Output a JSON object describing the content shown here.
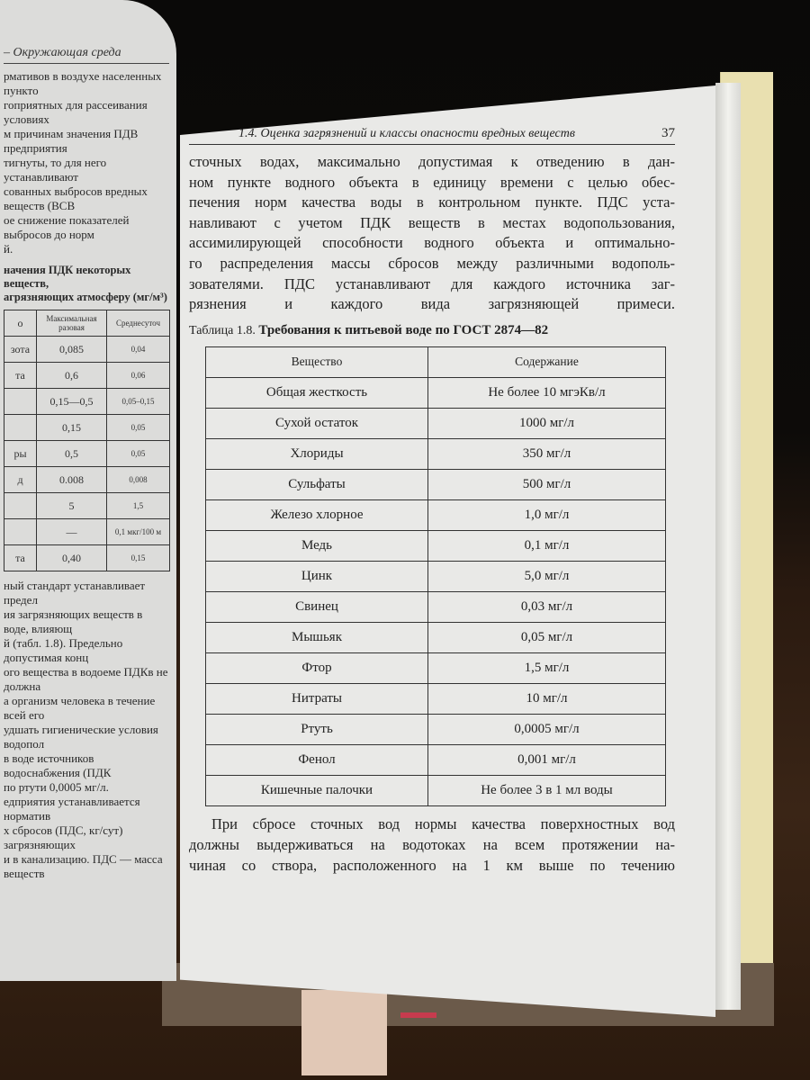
{
  "left_page": {
    "running_header": "– Окружающая среда",
    "paragraph_top": [
      "рмативов в воздухе населенных пункто",
      "гоприятных для рассеивания условиях",
      "м причинам значения ПДВ предприятия",
      "тигнуты, то для него устанавливают",
      "сованных выбросов вредных веществ (ВСВ",
      "ое снижение показателей выбросов до норм",
      "й."
    ],
    "table_caption": [
      "начения ПДК некоторых веществ,",
      "агрязняющих атмосферу (мг/м³)"
    ],
    "table_header": [
      "о",
      "Максимальная разовая",
      "Среднесуточ"
    ],
    "table_rows": [
      [
        "зота",
        "0,085",
        "0,04"
      ],
      [
        "та",
        "0,6",
        "0,06"
      ],
      [
        "",
        "0,15—0,5",
        "0,05–0,15"
      ],
      [
        "",
        "0,15",
        "0,05"
      ],
      [
        "ры",
        "0,5",
        "0,05"
      ],
      [
        "д",
        "0.008",
        "0,008"
      ],
      [
        "",
        "5",
        "1,5"
      ],
      [
        "",
        "—",
        "0,1 мкг/100 м"
      ],
      [
        "та",
        "0,40",
        "0,15"
      ]
    ],
    "paragraph_bottom": [
      "ный стандарт устанавливает предел",
      "ия загрязняющих веществ в воде, влияющ",
      "й (табл. 1.8). Предельно допустимая конц",
      "ого вещества в водоеме ПДКв не должна",
      "а организм человека в течение всей его",
      "удшать гигиенические условия водопол",
      "в воде источников водоснабжения (ПДК",
      "по ртути 0,0005 мг/л.",
      "едприятия устанавливается норматив",
      "х сбросов (ПДС, кг/сут) загрязняющих",
      "и в канализацию. ПДС — масса веществ"
    ]
  },
  "right_page": {
    "running_header": "1.4. Оценка загрязнений и классы опасности вредных веществ",
    "page_number": "37",
    "paragraph": [
      "сточных водах, максимально допустимая к отведению в дан-",
      "ном пункте водного объекта в единицу времени с целью обес-",
      "печения норм качества воды в контрольном пункте. ПДС уста-",
      "навливают с учетом ПДК веществ в местах водопользования,",
      "ассимилирующей способности водного объекта и оптимально-",
      "го распределения массы сбросов между различными водополь-",
      "зователями. ПДС устанавливают для каждого источника заг-",
      "рязнения и каждого вида загрязняющей примеси."
    ],
    "table_label": "Таблица 1.8.",
    "table_title": "Требования к питьевой воде по ГОСТ 2874—82",
    "table_header": [
      "Вещество",
      "Содержание"
    ],
    "table_rows": [
      [
        "Общая жесткость",
        "Не более 10 мгэКв/л"
      ],
      [
        "Сухой остаток",
        "1000 мг/л"
      ],
      [
        "Хлориды",
        "350 мг/л"
      ],
      [
        "Сульфаты",
        "500 мг/л"
      ],
      [
        "Железо хлорное",
        "1,0 мг/л"
      ],
      [
        "Медь",
        "0,1 мг/л"
      ],
      [
        "Цинк",
        "5,0 мг/л"
      ],
      [
        "Свинец",
        "0,03 мг/л"
      ],
      [
        "Мышьяк",
        "0,05 мг/л"
      ],
      [
        "Фтор",
        "1,5 мг/л"
      ],
      [
        "Нитраты",
        "10 мг/л"
      ],
      [
        "Ртуть",
        "0,0005 мг/л"
      ],
      [
        "Фенол",
        "0,001 мг/л"
      ],
      [
        "Кишечные палочки",
        "Не более 3 в 1 мл воды"
      ]
    ],
    "paragraph_after": [
      "При сбросе сточных вод нормы качества поверхностных вод",
      "должны выдерживаться на водотоках на всем протяжении на-",
      "чиная со створа, расположенного на 1 км выше по течению"
    ]
  }
}
